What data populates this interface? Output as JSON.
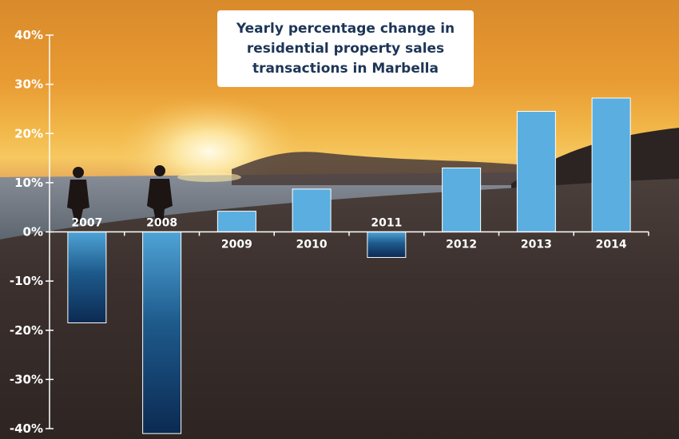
{
  "colors": {
    "positive_bar": "#5aaee0",
    "negative_bar_top": "#4fa3d6",
    "negative_bar_bottom": "#0b2a52",
    "axis": "#ffffff",
    "title_text": "#1d3557"
  },
  "chart_data": {
    "type": "bar",
    "title": "Yearly percentage change in residential property sales transactions in Marbella",
    "xlabel": "",
    "ylabel": "",
    "categories": [
      "2007",
      "2008",
      "2009",
      "2010",
      "2011",
      "2012",
      "2013",
      "2014"
    ],
    "values": [
      -18.5,
      -41,
      4.2,
      8.7,
      -5.2,
      13,
      24.5,
      27.2
    ],
    "ylim": [
      -40,
      40
    ],
    "yticks": [
      -40,
      -30,
      -20,
      -10,
      0,
      10,
      20,
      30,
      40
    ],
    "ytick_labels": [
      "-40%",
      "-30%",
      "-20%",
      "-10%",
      "0%",
      "10%",
      "20%",
      "30%",
      "40%"
    ],
    "grid": false,
    "legend": "none"
  }
}
